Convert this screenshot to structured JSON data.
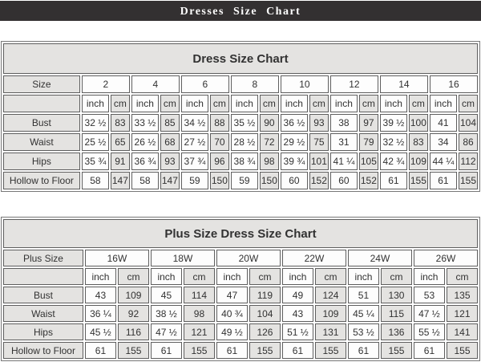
{
  "banner": {
    "title": "Dresses Size Chart"
  },
  "colors": {
    "banner_bg": "#333031",
    "banner_text": "#ffffff",
    "cell_gray": "#e4e3e1",
    "cell_white": "#fdfdfd",
    "border": "#5e5e5e",
    "outer_border": "#777777",
    "text": "#323232"
  },
  "chart_data": [
    {
      "type": "table",
      "title": "Dress Size Chart",
      "label_header": "Size",
      "units": [
        "inch",
        "cm"
      ],
      "columns": [
        "2",
        "4",
        "6",
        "8",
        "10",
        "12",
        "14",
        "16"
      ],
      "rows": [
        {
          "label": "Bust",
          "values": [
            [
              "32 ½",
              "83"
            ],
            [
              "33 ½",
              "85"
            ],
            [
              "34 ½",
              "88"
            ],
            [
              "35 ½",
              "90"
            ],
            [
              "36 ½",
              "93"
            ],
            [
              "38",
              "97"
            ],
            [
              "39 ½",
              "100"
            ],
            [
              "41",
              "104"
            ]
          ]
        },
        {
          "label": "Waist",
          "values": [
            [
              "25 ½",
              "65"
            ],
            [
              "26 ½",
              "68"
            ],
            [
              "27 ½",
              "70"
            ],
            [
              "28 ½",
              "72"
            ],
            [
              "29 ½",
              "75"
            ],
            [
              "31",
              "79"
            ],
            [
              "32 ½",
              "83"
            ],
            [
              "34",
              "86"
            ]
          ]
        },
        {
          "label": "Hips",
          "values": [
            [
              "35 ¾",
              "91"
            ],
            [
              "36 ¾",
              "93"
            ],
            [
              "37 ¾",
              "96"
            ],
            [
              "38 ¾",
              "98"
            ],
            [
              "39 ¾",
              "101"
            ],
            [
              "41 ¼",
              "105"
            ],
            [
              "42 ¾",
              "109"
            ],
            [
              "44 ¼",
              "112"
            ]
          ]
        },
        {
          "label": "Hollow to Floor",
          "values": [
            [
              "58",
              "147"
            ],
            [
              "58",
              "147"
            ],
            [
              "59",
              "150"
            ],
            [
              "59",
              "150"
            ],
            [
              "60",
              "152"
            ],
            [
              "60",
              "152"
            ],
            [
              "61",
              "155"
            ],
            [
              "61",
              "155"
            ]
          ]
        }
      ]
    },
    {
      "type": "table",
      "title": "Plus Size Dress Size Chart",
      "label_header": "Plus Size",
      "units": [
        "inch",
        "cm"
      ],
      "columns": [
        "16W",
        "18W",
        "20W",
        "22W",
        "24W",
        "26W"
      ],
      "rows": [
        {
          "label": "Bust",
          "values": [
            [
              "43",
              "109"
            ],
            [
              "45",
              "114"
            ],
            [
              "47",
              "119"
            ],
            [
              "49",
              "124"
            ],
            [
              "51",
              "130"
            ],
            [
              "53",
              "135"
            ]
          ]
        },
        {
          "label": "Waist",
          "values": [
            [
              "36 ¼",
              "92"
            ],
            [
              "38 ½",
              "98"
            ],
            [
              "40 ¾",
              "104"
            ],
            [
              "43",
              "109"
            ],
            [
              "45 ¼",
              "115"
            ],
            [
              "47 ½",
              "121"
            ]
          ]
        },
        {
          "label": "Hips",
          "values": [
            [
              "45 ½",
              "116"
            ],
            [
              "47 ½",
              "121"
            ],
            [
              "49 ½",
              "126"
            ],
            [
              "51 ½",
              "131"
            ],
            [
              "53 ½",
              "136"
            ],
            [
              "55 ½",
              "141"
            ]
          ]
        },
        {
          "label": "Hollow to Floor",
          "values": [
            [
              "61",
              "155"
            ],
            [
              "61",
              "155"
            ],
            [
              "61",
              "155"
            ],
            [
              "61",
              "155"
            ],
            [
              "61",
              "155"
            ],
            [
              "61",
              "155"
            ]
          ]
        }
      ]
    }
  ]
}
